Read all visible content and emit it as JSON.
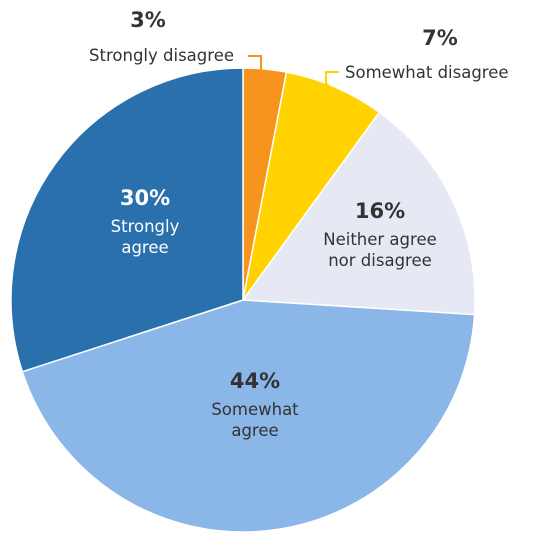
{
  "chart_data": {
    "type": "pie",
    "title": "",
    "start": "12 o'clock, clockwise",
    "slices": [
      {
        "label": "Strongly disagree",
        "value": 3,
        "value_label": "3%",
        "color": "#f7941d",
        "label_color": "#333333",
        "label_mode": "leader"
      },
      {
        "label": "Somewhat disagree",
        "value": 7,
        "value_label": "7%",
        "color": "#ffd200",
        "label_color": "#333333",
        "label_mode": "leader"
      },
      {
        "label_lines": [
          "Neither agree",
          "nor disagree"
        ],
        "value": 16,
        "value_label": "16%",
        "color": "#e6e9f3",
        "label_color": "#333333",
        "label_mode": "inside"
      },
      {
        "label_lines": [
          "Somewhat",
          "agree"
        ],
        "value": 44,
        "value_label": "44%",
        "color": "#8ab6e8",
        "label_color": "#333333",
        "label_mode": "inside"
      },
      {
        "label_lines": [
          "Strongly",
          "agree"
        ],
        "value": 30,
        "value_label": "30%",
        "color": "#2a70ac",
        "label_color": "#ffffff",
        "label_mode": "inside"
      }
    ]
  }
}
